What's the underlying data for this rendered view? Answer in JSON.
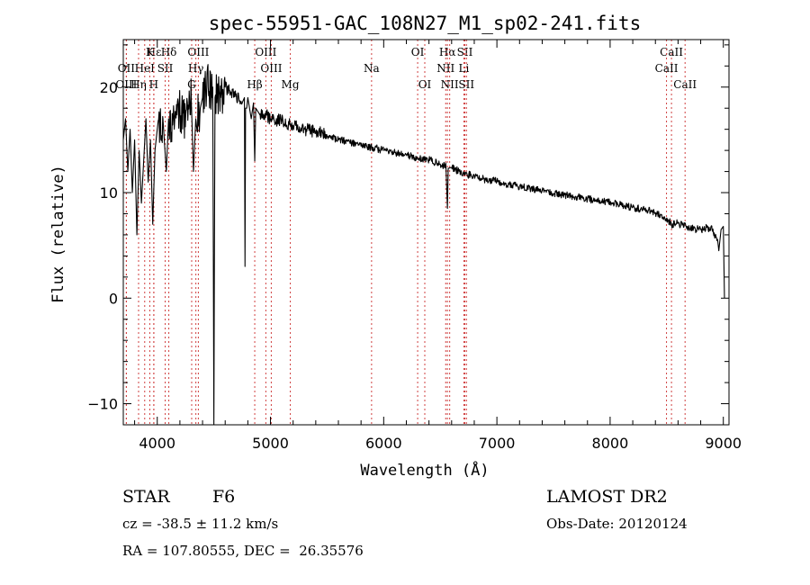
{
  "chart_data": {
    "type": "line",
    "title": "spec-55951-GAC_108N27_M1_sp02-241.fits",
    "xlabel": "Wavelength (Å)",
    "ylabel": "Flux (relative)",
    "xlim": [
      3700,
      9050
    ],
    "ylim": [
      -12,
      24.5
    ],
    "xticks": [
      4000,
      5000,
      6000,
      7000,
      8000,
      9000
    ],
    "yticks": [
      -10,
      0,
      10,
      20
    ],
    "grid": false,
    "series": [
      {
        "x": [
          3700,
          3720,
          3740,
          3760,
          3780,
          3800,
          3820,
          3840,
          3860,
          3880,
          3900,
          3920,
          3940,
          3960,
          3980,
          4000,
          4050,
          4080,
          4100,
          4150,
          4200,
          4250,
          4300,
          4320,
          4340,
          4380,
          4400,
          4450,
          4490,
          4495,
          4500,
          4505,
          4510,
          4560,
          4600,
          4650,
          4700,
          4750,
          4770,
          4775,
          4780,
          4790,
          4800,
          4830,
          4850,
          4861,
          4870,
          4900,
          4950,
          5000,
          5100,
          5200,
          5300,
          5400,
          5500,
          5600,
          5700,
          5800,
          5900,
          6000,
          6100,
          6200,
          6300,
          6400,
          6500,
          6550,
          6563,
          6570,
          6600,
          6700,
          6800,
          6900,
          7000,
          7100,
          7200,
          7300,
          7400,
          7500,
          7600,
          7700,
          7800,
          7900,
          8000,
          8100,
          8200,
          8300,
          8400,
          8500,
          8542,
          8600,
          8700,
          8800,
          8850,
          8900,
          8950,
          8960,
          8980,
          9000,
          9010
        ],
        "y": [
          15,
          17,
          12,
          16,
          10,
          15,
          6,
          14,
          9,
          13,
          17,
          11,
          15,
          7,
          14,
          16,
          17,
          12,
          17,
          16,
          18,
          17,
          19,
          12,
          17,
          18,
          19,
          20,
          20,
          5,
          -12,
          5,
          19,
          19,
          20,
          19.5,
          19,
          18.5,
          19,
          3,
          18,
          18,
          19,
          17,
          18.5,
          13,
          18,
          17.5,
          17.5,
          17,
          16.8,
          16.3,
          16,
          15.8,
          15.4,
          15,
          14.8,
          14.4,
          14.3,
          14,
          13.8,
          13.6,
          13.2,
          13.1,
          12.7,
          12.5,
          8.5,
          12.3,
          12.4,
          11.8,
          11.6,
          11.2,
          11.1,
          10.8,
          10.6,
          10.4,
          10.2,
          9.9,
          9.8,
          9.6,
          9.4,
          9.2,
          9.1,
          8.8,
          8.6,
          8.4,
          8.1,
          7.6,
          7,
          7.1,
          6.6,
          6.5,
          6.7,
          6.5,
          5.5,
          4.5,
          6.5,
          6.8,
          0
        ]
      }
    ],
    "lines": [
      {
        "label": "Hε",
        "wl": 3970,
        "pos": "top",
        "row": 0
      },
      {
        "label": "K",
        "wl": 3934,
        "pos": "top",
        "row": 0
      },
      {
        "label": "Hδ",
        "wl": 4102,
        "pos": "top",
        "row": 0
      },
      {
        "label": "OIII",
        "wl": 4363,
        "pos": "top",
        "row": 0
      },
      {
        "label": "OIII",
        "wl": 4959,
        "pos": "top",
        "row": 0
      },
      {
        "label": "OI",
        "wl": 6300,
        "pos": "top",
        "row": 0
      },
      {
        "label": "Hα",
        "wl": 6563,
        "pos": "top",
        "row": 0
      },
      {
        "label": "SII",
        "wl": 6717,
        "pos": "top",
        "row": 0
      },
      {
        "label": "CaII",
        "wl": 8542,
        "pos": "top",
        "row": 0
      },
      {
        "label": "OII",
        "wl": 3727,
        "pos": "top",
        "row": 1
      },
      {
        "label": "HeI",
        "wl": 3889,
        "pos": "top",
        "row": 1
      },
      {
        "label": "SII",
        "wl": 4070,
        "pos": "top",
        "row": 1
      },
      {
        "label": "Hγ",
        "wl": 4341,
        "pos": "top",
        "row": 1
      },
      {
        "label": "OIII",
        "wl": 5007,
        "pos": "top",
        "row": 1
      },
      {
        "label": "Na",
        "wl": 5893,
        "pos": "top",
        "row": 1
      },
      {
        "label": "NII",
        "wl": 6548,
        "pos": "top",
        "row": 1
      },
      {
        "label": "Li",
        "wl": 6708,
        "pos": "top",
        "row": 1
      },
      {
        "label": "CaII",
        "wl": 8498,
        "pos": "top",
        "row": 1
      },
      {
        "label": "OIII",
        "wl": 3727,
        "pos": "top",
        "row": 2
      },
      {
        "label": "Hη",
        "wl": 3835,
        "pos": "top",
        "row": 2
      },
      {
        "label": "H",
        "wl": 3969,
        "pos": "top",
        "row": 2
      },
      {
        "label": "G",
        "wl": 4304,
        "pos": "top",
        "row": 2
      },
      {
        "label": "Hβ",
        "wl": 4861,
        "pos": "top",
        "row": 2
      },
      {
        "label": "Mg",
        "wl": 5175,
        "pos": "top",
        "row": 2
      },
      {
        "label": "OI",
        "wl": 6363,
        "pos": "top",
        "row": 2
      },
      {
        "label": "NII",
        "wl": 6583,
        "pos": "top",
        "row": 2
      },
      {
        "label": "SII",
        "wl": 6731,
        "pos": "top",
        "row": 2
      },
      {
        "label": "CaII",
        "wl": 8662,
        "pos": "top",
        "row": 2
      }
    ]
  },
  "info": {
    "class_label": "STAR",
    "subclass": "F6",
    "survey": "LAMOST DR2",
    "cz": "cz = -38.5 ± 11.2 km/s",
    "obs_date": "Obs-Date: 20120124",
    "coords": "RA = 107.80555, DEC =  26.35576"
  }
}
